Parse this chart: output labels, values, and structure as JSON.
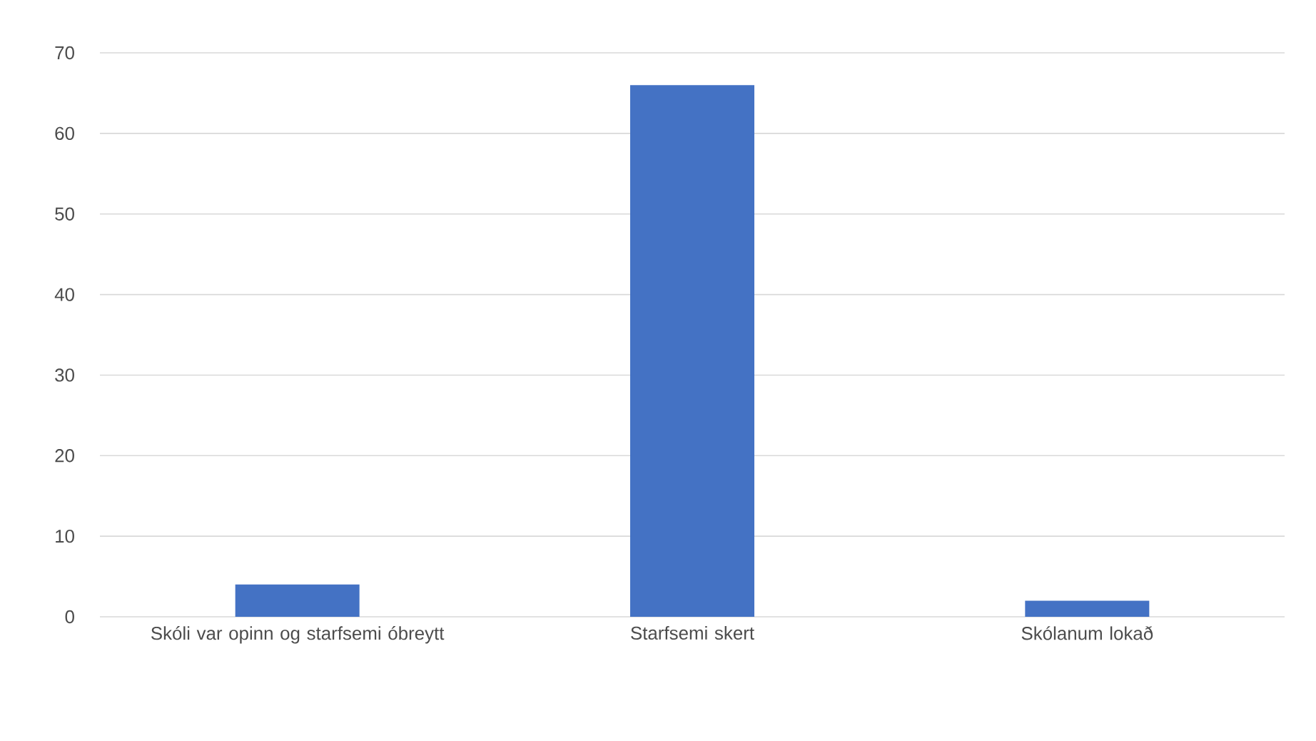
{
  "chart_data": {
    "type": "bar",
    "categories": [
      "Skóli var opinn og starfsemi óbreytt",
      "Starfsemi skert",
      "Skólanum lokað"
    ],
    "values": [
      4,
      66,
      2
    ],
    "color": "#4472c4",
    "ylim": [
      0,
      70
    ],
    "yticks": [
      0,
      10,
      20,
      30,
      40,
      50,
      60,
      70
    ],
    "grid": "y"
  }
}
